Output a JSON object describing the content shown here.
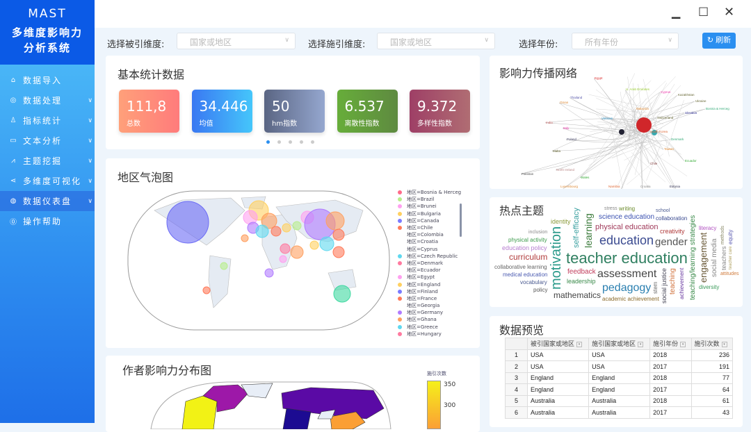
{
  "app": {
    "name": "MAST",
    "subtitle_line1": "多维度影响力",
    "subtitle_line2": "分析系统"
  },
  "sidebar": {
    "items": [
      {
        "label": "数据导入",
        "icon": "home-icon",
        "has_chevron": false
      },
      {
        "label": "数据处理",
        "icon": "yen-circle-icon",
        "has_chevron": true
      },
      {
        "label": "指标统计",
        "icon": "user-icon",
        "has_chevron": true
      },
      {
        "label": "文本分析",
        "icon": "document-icon",
        "has_chevron": true
      },
      {
        "label": "主题挖掘",
        "icon": "chart-line-icon",
        "has_chevron": true
      },
      {
        "label": "多维度可视化",
        "icon": "share-icon",
        "has_chevron": true
      },
      {
        "label": "数据仪表盘",
        "icon": "globe-icon",
        "has_chevron": true,
        "active": true
      },
      {
        "label": "操作帮助",
        "icon": "help-icon",
        "has_chevron": false
      }
    ]
  },
  "window": {
    "minimize": "minimize",
    "maximize": "maximize",
    "close": "close"
  },
  "filters": {
    "cited_label": "选择被引维度:",
    "cited_placeholder": "国家或地区",
    "citing_label": "选择施引维度:",
    "citing_placeholder": "国家或地区",
    "year_label": "选择年份:",
    "year_placeholder": "所有年份",
    "refresh": "刷新"
  },
  "stats": {
    "title": "基本统计数据",
    "cards": [
      {
        "value": "111,8",
        "label": "总数",
        "colors": [
          "#ffa07a",
          "#ff7b7b"
        ]
      },
      {
        "value": "34.446",
        "label": "均值",
        "colors": [
          "#3a78f2",
          "#45c6fb"
        ]
      },
      {
        "value": "50",
        "label": "hm指数",
        "colors": [
          "#5a6583",
          "#95a7cf"
        ]
      },
      {
        "value": "6.537",
        "label": "离散性指数",
        "colors": [
          "#67ad3a",
          "#5e8a40"
        ]
      },
      {
        "value": "9.372",
        "label": "多样性指数",
        "colors": [
          "#9e3f66",
          "#b06d73"
        ]
      }
    ],
    "pages": 5,
    "current_page": 1
  },
  "bubble_map": {
    "title": "地区气泡图",
    "legend": [
      {
        "label": "地区=Bosnia & Herceg",
        "color": "#ff6b8a"
      },
      {
        "label": "地区=Brazil",
        "color": "#b8ef8c"
      },
      {
        "label": "地区=Brunei",
        "color": "#ffa0f0"
      },
      {
        "label": "地区=Bulgaria",
        "color": "#ffd060"
      },
      {
        "label": "地区=Canada",
        "color": "#7b7bff"
      },
      {
        "label": "地区=Chile",
        "color": "#ff7a5a"
      },
      {
        "label": "地区=Colombia",
        "color": ""
      },
      {
        "label": "地区=Croatia",
        "color": ""
      },
      {
        "label": "地区=Cyprus",
        "color": ""
      },
      {
        "label": "地区=Czech Republic",
        "color": "#5fd8ef"
      },
      {
        "label": "地区=Denmark",
        "color": "#ff7aa0"
      },
      {
        "label": "地区=Ecuador",
        "color": ""
      },
      {
        "label": "地区=Egypt",
        "color": "#ffa0f0"
      },
      {
        "label": "地区=England",
        "color": "#ffd060"
      },
      {
        "label": "地区=Finland",
        "color": "#7b7bff"
      },
      {
        "label": "地区=France",
        "color": "#ff7a5a"
      },
      {
        "label": "地区=Georgia",
        "color": ""
      },
      {
        "label": "地区=Germany",
        "color": "#b07bff"
      },
      {
        "label": "地区=Ghana",
        "color": "#ffa060"
      },
      {
        "label": "地区=Greece",
        "color": "#5fd8ef"
      },
      {
        "label": "地区=Hungary",
        "color": "#ff7aa0"
      }
    ]
  },
  "choropleth": {
    "title": "作者影响力分布图",
    "colorbar_title": "施引次数",
    "ticks": [
      "350",
      "300"
    ]
  },
  "network": {
    "title": "影响力传播网络",
    "labels": [
      {
        "t": "Egypt",
        "c": "#d33"
      },
      {
        "t": "U. Arab Emirates",
        "c": "#9c3"
      },
      {
        "t": "Cyprus",
        "c": "#e3a"
      },
      {
        "t": "Thailand",
        "c": "#55a"
      },
      {
        "t": "Oman",
        "c": "#d83"
      },
      {
        "t": "Kazakhstan",
        "c": "#663"
      },
      {
        "t": "Ukraine",
        "c": "#663"
      },
      {
        "t": "Bosnia & Herceg",
        "c": "#3a7"
      },
      {
        "t": "Slovakia",
        "c": "#339"
      },
      {
        "t": "Pakistan",
        "c": "#555"
      },
      {
        "t": "India",
        "c": "#c66"
      },
      {
        "t": "Italy",
        "c": "#e3a"
      },
      {
        "t": "Poland",
        "c": "#446"
      },
      {
        "t": "Malta",
        "c": "#663"
      },
      {
        "t": "Denmark",
        "c": "#3a7"
      },
      {
        "t": "Taiwan",
        "c": "#d83"
      },
      {
        "t": "Ecuador",
        "c": "#3a3"
      },
      {
        "t": "Chile",
        "c": "#844"
      },
      {
        "t": "North Ireland",
        "c": "#b88"
      },
      {
        "t": "Wales",
        "c": "#3a3"
      },
      {
        "t": "Luxembourg",
        "c": "#d83"
      },
      {
        "t": "Namibia",
        "c": "#d63"
      },
      {
        "t": "Croatia",
        "c": "#888"
      },
      {
        "t": "Estonia",
        "c": "#335"
      },
      {
        "t": "Vietnam",
        "c": "#39c"
      },
      {
        "t": "South Korea",
        "c": "#d63"
      },
      {
        "t": "Malaysia",
        "c": "#d83"
      },
      {
        "t": "Switzerland",
        "c": "#663"
      }
    ]
  },
  "hot_topics": {
    "title": "热点主题",
    "words": [
      {
        "t": "teacher education",
        "w": 22,
        "c": "#2f7f60"
      },
      {
        "t": "motivation",
        "w": 20,
        "c": "#2a9a8a"
      },
      {
        "t": "education",
        "w": 18,
        "c": "#3a4a90"
      },
      {
        "t": "assessment",
        "w": 16,
        "c": "#444"
      },
      {
        "t": "pedagogy",
        "w": 16,
        "c": "#2a7fb0"
      },
      {
        "t": "gender",
        "w": 15,
        "c": "#555"
      },
      {
        "t": "learning",
        "w": 14,
        "c": "#3a7a3a"
      },
      {
        "t": "mathematics",
        "w": 12,
        "c": "#444"
      },
      {
        "t": "engagement",
        "w": 13,
        "c": "#665533"
      },
      {
        "t": "curriculum",
        "w": 12,
        "c": "#b03a3a"
      },
      {
        "t": "teaching/learning strategies",
        "w": 10,
        "c": "#3a8a4a"
      },
      {
        "t": "social justice",
        "w": 9,
        "c": "#445"
      },
      {
        "t": "collaborative learning",
        "w": 8,
        "c": "#666"
      },
      {
        "t": "education policy",
        "w": 9,
        "c": "#b77fd0"
      },
      {
        "t": "science education",
        "w": 10,
        "c": "#3a50b0"
      },
      {
        "t": "self-efficacy",
        "w": 11,
        "c": "#3aa0a0"
      },
      {
        "t": "physical education",
        "w": 11,
        "c": "#a03a5a"
      },
      {
        "t": "social media",
        "w": 10,
        "c": "#888"
      },
      {
        "t": "teaching",
        "w": 10,
        "c": "#d0703a"
      },
      {
        "t": "academic achievement",
        "w": 8,
        "c": "#8a6a2a"
      },
      {
        "t": "creativity",
        "w": 9,
        "c": "#b03a3a"
      },
      {
        "t": "feedback",
        "w": 10,
        "c": "#c03a5a"
      },
      {
        "t": "leadership",
        "w": 9,
        "c": "#3a8a4a"
      },
      {
        "t": "physical activity",
        "w": 8,
        "c": "#3a9a4a"
      },
      {
        "t": "vocabulary",
        "w": 8,
        "c": "#4a5a90"
      },
      {
        "t": "collaboration",
        "w": 8,
        "c": "#3a4a90"
      },
      {
        "t": "achievement",
        "w": 8,
        "c": "#6a3aa0"
      },
      {
        "t": "writing",
        "w": 8,
        "c": "#6a8a2a"
      },
      {
        "t": "literacy",
        "w": 8,
        "c": "#b050c0"
      },
      {
        "t": "school",
        "w": 7,
        "c": "#4a5a90"
      },
      {
        "t": "inclusion",
        "w": 7,
        "c": "#888"
      },
      {
        "t": "identity",
        "w": 9,
        "c": "#8a9a3a"
      },
      {
        "t": "teachers",
        "w": 9,
        "c": "#888"
      },
      {
        "t": "equity",
        "w": 8,
        "c": "#5a5ab0"
      },
      {
        "t": "diversity",
        "w": 8,
        "c": "#3a9a5a"
      },
      {
        "t": "medical education",
        "w": 8,
        "c": "#4a5ab0"
      },
      {
        "t": "stem",
        "w": 8,
        "c": "#666"
      },
      {
        "t": "attitudes",
        "w": 7,
        "c": "#d07a3a"
      },
      {
        "t": "stress",
        "w": 7,
        "c": "#888"
      },
      {
        "t": "policy",
        "w": 8,
        "c": "#555"
      },
      {
        "t": "methods",
        "w": 7,
        "c": "#886"
      },
      {
        "t": "teacher care",
        "w": 6,
        "c": "#b0a060"
      }
    ]
  },
  "preview": {
    "title": "数据预览",
    "columns": [
      "被引国家或地区",
      "施引国家或地区",
      "施引年份",
      "施引次数"
    ],
    "rows": [
      [
        "1",
        "USA",
        "USA",
        "2018",
        "236"
      ],
      [
        "2",
        "USA",
        "USA",
        "2017",
        "191"
      ],
      [
        "3",
        "England",
        "England",
        "2018",
        "77"
      ],
      [
        "4",
        "England",
        "England",
        "2017",
        "64"
      ],
      [
        "5",
        "Australia",
        "Australia",
        "2018",
        "61"
      ],
      [
        "6",
        "Australia",
        "Australia",
        "2017",
        "43"
      ]
    ]
  }
}
